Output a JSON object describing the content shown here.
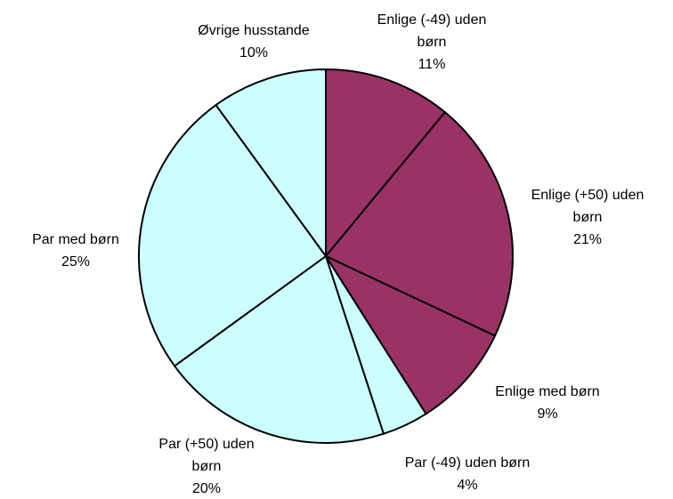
{
  "chart_data": {
    "type": "pie",
    "categories": [
      "Enlige (-49) uden børn",
      "Enlige (+50) uden børn",
      "Enlige med børn",
      "Par (-49) uden børn",
      "Par (+50) uden børn",
      "Par med børn",
      "Øvrige husstande"
    ],
    "values": [
      11,
      21,
      9,
      4,
      20,
      25,
      10
    ],
    "value_labels": [
      "11%",
      "21%",
      "9%",
      "4%",
      "20%",
      "25%",
      "10%"
    ],
    "colors": [
      "#993366",
      "#993366",
      "#993366",
      "#ccffff",
      "#ccffff",
      "#ccffff",
      "#ccffff"
    ]
  }
}
